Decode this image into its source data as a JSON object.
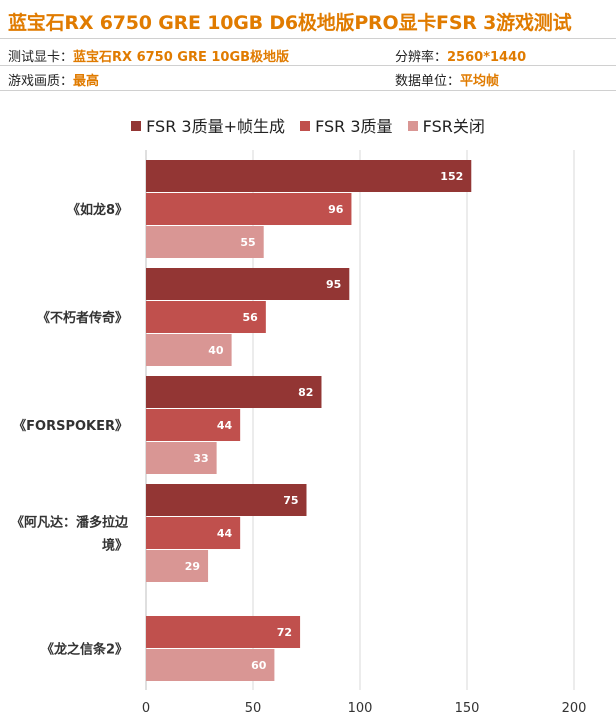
{
  "header": {
    "title": "蓝宝石RX 6750 GRE 10GB D6极地版PRO显卡FSR 3游戏测试",
    "gpu_label": "测试显卡：",
    "gpu_value": "蓝宝石RX 6750 GRE 10GB极地版",
    "resolution_label": "分辨率：",
    "resolution_value": "2560*1440",
    "quality_label": "游戏画质：",
    "quality_value": "最高",
    "unit_label": "数据单位：",
    "unit_value": "平均帧"
  },
  "chart_data": {
    "type": "bar",
    "orientation": "horizontal",
    "categories": [
      "《如龙8》",
      "《不朽者传奇》",
      "《FORSPOKER》",
      "《阿凡达：潘多拉边境》",
      "《龙之信条2》"
    ],
    "category_lines": [
      [
        "《如龙8》"
      ],
      [
        "《不朽者传奇》"
      ],
      [
        "《FORSPOKER》"
      ],
      [
        "《阿凡达：潘多拉边",
        "境》"
      ],
      [
        "《龙之信条2》"
      ]
    ],
    "series": [
      {
        "name": "FSR 3质量+帧生成",
        "color": "#933634",
        "values": [
          152,
          95,
          82,
          75,
          null
        ]
      },
      {
        "name": "FSR 3质量",
        "color": "#c0504d",
        "values": [
          96,
          56,
          44,
          44,
          72
        ]
      },
      {
        "name": "FSR关闭",
        "color": "#d99694",
        "values": [
          55,
          40,
          33,
          29,
          60
        ]
      }
    ],
    "xlim": [
      0,
      200
    ],
    "xticks": [
      0,
      50,
      100,
      150,
      200
    ],
    "grid": true,
    "legend_position": "top"
  }
}
